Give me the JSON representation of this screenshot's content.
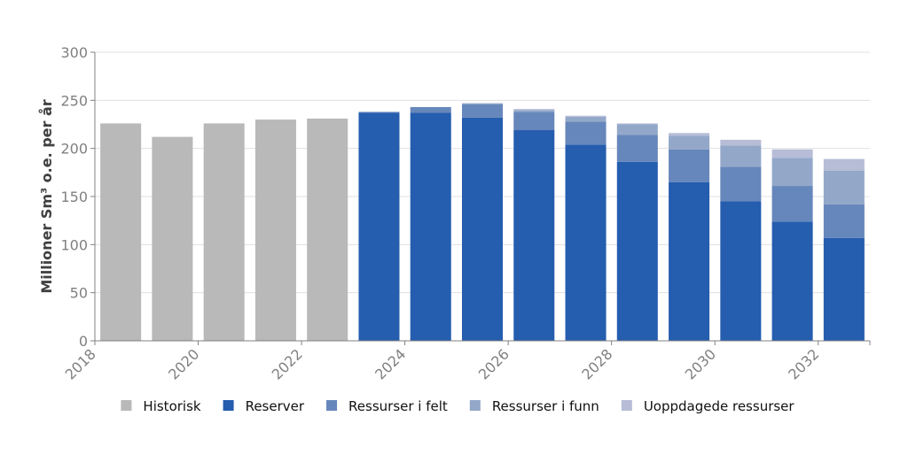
{
  "chart_data": {
    "type": "bar",
    "stacked": true,
    "ylabel": "Millioner Sm³ o.e. per år",
    "xlabel": "",
    "ylim": [
      0,
      300
    ],
    "yticks": [
      0,
      50,
      100,
      150,
      200,
      250,
      300
    ],
    "grid": true,
    "legend_position": "bottom",
    "categories": [
      "2018",
      "2019",
      "2020",
      "2021",
      "2022",
      "2023",
      "2024",
      "2025",
      "2026",
      "2027",
      "2028",
      "2029",
      "2030",
      "2031",
      "2032"
    ],
    "tick_labels": [
      "2018",
      "2020",
      "2022",
      "2024",
      "2026",
      "2028",
      "2030",
      "2032"
    ],
    "series": [
      {
        "name": "Historisk",
        "color": "#b9b9b9",
        "values": [
          226,
          212,
          226,
          230,
          231,
          0,
          0,
          0,
          0,
          0,
          0,
          0,
          0,
          0,
          0
        ]
      },
      {
        "name": "Reserver",
        "color": "#255daf",
        "values": [
          0,
          0,
          0,
          0,
          0,
          237,
          237,
          232,
          219,
          204,
          186,
          165,
          145,
          124,
          107
        ]
      },
      {
        "name": "Ressurser i felt",
        "color": "#6687bb",
        "values": [
          0,
          0,
          0,
          0,
          0,
          1,
          6,
          14,
          19,
          24,
          28,
          34,
          36,
          37,
          35
        ]
      },
      {
        "name": "Ressurser i funn",
        "color": "#93a8c9",
        "values": [
          0,
          0,
          0,
          0,
          0,
          0,
          0,
          1,
          2,
          5,
          11,
          14,
          22,
          29,
          35
        ]
      },
      {
        "name": "Uoppdagede ressurser",
        "color": "#b7bdd6",
        "values": [
          0,
          0,
          0,
          0,
          0,
          0,
          0,
          0,
          1,
          1,
          1,
          3,
          6,
          9,
          12
        ]
      }
    ]
  }
}
